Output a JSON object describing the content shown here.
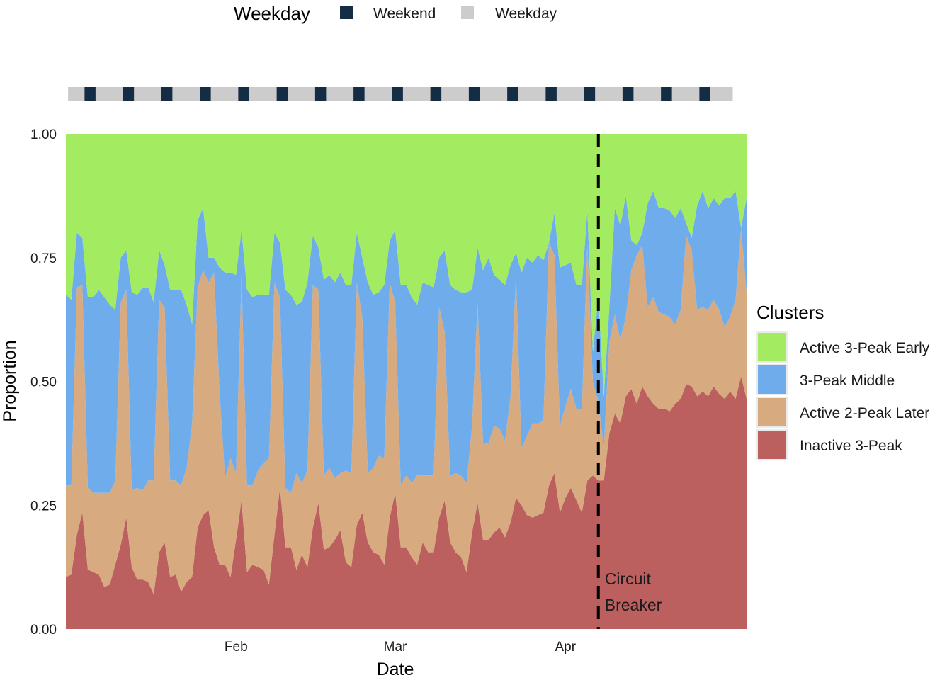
{
  "chart_data": {
    "type": "area",
    "stacked": true,
    "normalized": true,
    "xlabel": "Date",
    "ylabel": "Proportion",
    "x_start": "2020-01-01",
    "x_end": "2020-04-30",
    "x_ticks": [
      {
        "date": "2020-02-01",
        "label": "Feb"
      },
      {
        "date": "2020-03-01",
        "label": "Mar"
      },
      {
        "date": "2020-04-01",
        "label": "Apr"
      }
    ],
    "ylim": [
      0,
      1
    ],
    "y_ticks": [
      {
        "value": 0,
        "label": "0.00"
      },
      {
        "value": 0.25,
        "label": "0.25"
      },
      {
        "value": 0.5,
        "label": "0.50"
      },
      {
        "value": 0.75,
        "label": "0.75"
      },
      {
        "value": 1,
        "label": "1.00"
      }
    ],
    "grid": false,
    "legend": {
      "title": "Clusters",
      "position": "right",
      "entries": [
        {
          "label": "Active 3-Peak Early",
          "color": "#a3ec61"
        },
        {
          "label": "3-Peak Middle",
          "color": "#6eaceb"
        },
        {
          "label": "Active 2-Peak Later",
          "color": "#d8aa80"
        },
        {
          "label": "Inactive 3-Peak",
          "color": "#bb5f5f"
        }
      ]
    },
    "weekday_legend": {
      "title": "Weekday",
      "position": "top",
      "entries": [
        {
          "label": "Weekend",
          "color": "#152c45"
        },
        {
          "label": "Weekday",
          "color": "#cccccc"
        }
      ]
    },
    "annotation": {
      "date": "2020-04-07",
      "lines": [
        "Circuit",
        "Breaker"
      ],
      "line_style": "dashed",
      "color": "#000000"
    },
    "series": [
      {
        "name": "Inactive 3-Peak",
        "color": "#bb5f5f",
        "values": [
          0.105,
          0.11,
          0.19,
          0.235,
          0.12,
          0.115,
          0.11,
          0.085,
          0.09,
          0.13,
          0.17,
          0.225,
          0.125,
          0.1,
          0.1,
          0.095,
          0.07,
          0.155,
          0.175,
          0.105,
          0.11,
          0.075,
          0.095,
          0.105,
          0.205,
          0.23,
          0.24,
          0.165,
          0.13,
          0.13,
          0.105,
          0.18,
          0.26,
          0.115,
          0.13,
          0.125,
          0.12,
          0.09,
          0.19,
          0.285,
          0.165,
          0.165,
          0.12,
          0.15,
          0.125,
          0.205,
          0.255,
          0.16,
          0.165,
          0.18,
          0.2,
          0.135,
          0.125,
          0.21,
          0.235,
          0.175,
          0.155,
          0.15,
          0.13,
          0.225,
          0.275,
          0.165,
          0.165,
          0.145,
          0.13,
          0.175,
          0.155,
          0.155,
          0.225,
          0.26,
          0.175,
          0.155,
          0.145,
          0.115,
          0.195,
          0.255,
          0.18,
          0.18,
          0.195,
          0.205,
          0.185,
          0.215,
          0.265,
          0.25,
          0.23,
          0.225,
          0.23,
          0.235,
          0.29,
          0.315,
          0.235,
          0.265,
          0.285,
          0.26,
          0.235,
          0.3,
          0.31,
          0.3,
          0.3,
          0.395,
          0.435,
          0.415,
          0.47,
          0.485,
          0.455,
          0.49,
          0.47,
          0.455,
          0.445,
          0.445,
          0.44,
          0.455,
          0.465,
          0.495,
          0.49,
          0.47,
          0.48,
          0.47,
          0.49,
          0.475,
          0.465,
          0.48,
          0.465,
          0.51,
          0.465
        ]
      },
      {
        "name": "Active 2-Peak Later",
        "color": "#d8aa80",
        "values": [
          0.185,
          0.18,
          0.5,
          0.46,
          0.165,
          0.16,
          0.165,
          0.19,
          0.185,
          0.17,
          0.49,
          0.46,
          0.155,
          0.185,
          0.18,
          0.205,
          0.23,
          0.51,
          0.475,
          0.195,
          0.19,
          0.215,
          0.23,
          0.31,
          0.485,
          0.495,
          0.46,
          0.555,
          0.35,
          0.175,
          0.24,
          0.135,
          0.455,
          0.175,
          0.16,
          0.195,
          0.215,
          0.255,
          0.51,
          0.385,
          0.12,
          0.11,
          0.195,
          0.145,
          0.195,
          0.49,
          0.43,
          0.15,
          0.16,
          0.125,
          0.115,
          0.185,
          0.19,
          0.49,
          0.395,
          0.14,
          0.17,
          0.2,
          0.215,
          0.475,
          0.385,
          0.125,
          0.145,
          0.15,
          0.18,
          0.135,
          0.155,
          0.155,
          0.425,
          0.34,
          0.135,
          0.16,
          0.165,
          0.18,
          0.215,
          0.405,
          0.195,
          0.195,
          0.215,
          0.2,
          0.195,
          0.255,
          0.45,
          0.115,
          0.16,
          0.19,
          0.185,
          0.185,
          0.49,
          0.44,
          0.175,
          0.185,
          0.2,
          0.185,
          0.21,
          0.48,
          0.19,
          0.16,
          0.065,
          0.185,
          0.2,
          0.17,
          0.16,
          0.24,
          0.3,
          0.285,
          0.18,
          0.215,
          0.195,
          0.19,
          0.19,
          0.16,
          0.18,
          0.3,
          0.275,
          0.175,
          0.17,
          0.175,
          0.175,
          0.17,
          0.145,
          0.15,
          0.2,
          0.3,
          0.215
        ]
      },
      {
        "name": "3-Peak Middle",
        "color": "#6eaceb",
        "values": [
          0.385,
          0.375,
          0.11,
          0.095,
          0.385,
          0.395,
          0.41,
          0.395,
          0.38,
          0.345,
          0.09,
          0.08,
          0.4,
          0.39,
          0.41,
          0.39,
          0.36,
          0.1,
          0.085,
          0.385,
          0.385,
          0.395,
          0.33,
          0.2,
          0.135,
          0.125,
          0.05,
          0.03,
          0.25,
          0.415,
          0.375,
          0.4,
          0.09,
          0.395,
          0.38,
          0.355,
          0.34,
          0.33,
          0.1,
          0.11,
          0.4,
          0.4,
          0.34,
          0.365,
          0.38,
          0.1,
          0.085,
          0.395,
          0.39,
          0.395,
          0.405,
          0.375,
          0.38,
          0.1,
          0.12,
          0.385,
          0.35,
          0.33,
          0.35,
          0.085,
          0.145,
          0.405,
          0.385,
          0.375,
          0.345,
          0.39,
          0.385,
          0.38,
          0.1,
          0.165,
          0.385,
          0.37,
          0.37,
          0.385,
          0.275,
          0.11,
          0.35,
          0.375,
          0.305,
          0.3,
          0.315,
          0.265,
          0.045,
          0.355,
          0.36,
          0.325,
          0.34,
          0.325,
          0.0,
          0.085,
          0.32,
          0.285,
          0.255,
          0.25,
          0.25,
          0.065,
          0.06,
          0.21,
          0.105,
          0.07,
          0.215,
          0.23,
          0.245,
          0.06,
          0.02,
          0.025,
          0.21,
          0.215,
          0.21,
          0.215,
          0.215,
          0.215,
          0.205,
          0.025,
          0.025,
          0.21,
          0.235,
          0.205,
          0.205,
          0.21,
          0.26,
          0.24,
          0.22,
          0.0,
          0.19
        ]
      },
      {
        "name": "Active 3-Peak Early",
        "color": "#a3ec61",
        "values": [
          0.325,
          0.335,
          0.2,
          0.21,
          0.33,
          0.33,
          0.315,
          0.33,
          0.345,
          0.355,
          0.25,
          0.235,
          0.32,
          0.325,
          0.31,
          0.31,
          0.34,
          0.235,
          0.265,
          0.315,
          0.315,
          0.315,
          0.345,
          0.385,
          0.175,
          0.15,
          0.25,
          0.25,
          0.27,
          0.28,
          0.28,
          0.285,
          0.195,
          0.315,
          0.33,
          0.325,
          0.325,
          0.325,
          0.2,
          0.22,
          0.315,
          0.325,
          0.345,
          0.34,
          0.3,
          0.205,
          0.23,
          0.295,
          0.285,
          0.3,
          0.28,
          0.305,
          0.305,
          0.2,
          0.25,
          0.3,
          0.325,
          0.32,
          0.305,
          0.215,
          0.195,
          0.305,
          0.305,
          0.33,
          0.345,
          0.3,
          0.305,
          0.31,
          0.25,
          0.235,
          0.305,
          0.315,
          0.32,
          0.32,
          0.315,
          0.23,
          0.275,
          0.25,
          0.285,
          0.295,
          0.305,
          0.265,
          0.24,
          0.28,
          0.25,
          0.26,
          0.245,
          0.255,
          0.22,
          0.16,
          0.27,
          0.265,
          0.26,
          0.305,
          0.305,
          0.155,
          0.44,
          0.33,
          0.53,
          0.35,
          0.15,
          0.185,
          0.125,
          0.215,
          0.225,
          0.2,
          0.14,
          0.115,
          0.15,
          0.15,
          0.155,
          0.17,
          0.15,
          0.18,
          0.21,
          0.145,
          0.115,
          0.15,
          0.13,
          0.145,
          0.13,
          0.13,
          0.115,
          0.19,
          0.13
        ]
      }
    ]
  }
}
